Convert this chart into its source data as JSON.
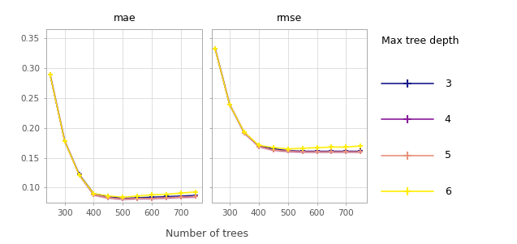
{
  "x_values": [
    250,
    300,
    350,
    400,
    450,
    500,
    550,
    600,
    650,
    700,
    750
  ],
  "mae": {
    "3": [
      0.289,
      0.178,
      0.122,
      0.09,
      0.085,
      0.082,
      0.083,
      0.084,
      0.085,
      0.086,
      0.087
    ],
    "4": [
      0.289,
      0.178,
      0.121,
      0.088,
      0.083,
      0.081,
      0.082,
      0.082,
      0.083,
      0.084,
      0.085
    ],
    "5": [
      0.289,
      0.178,
      0.121,
      0.088,
      0.083,
      0.081,
      0.082,
      0.082,
      0.083,
      0.084,
      0.085
    ],
    "6": [
      0.289,
      0.178,
      0.121,
      0.09,
      0.086,
      0.084,
      0.086,
      0.088,
      0.089,
      0.091,
      0.093
    ]
  },
  "mae_err": {
    "3": [
      0.001,
      0.001,
      0.001,
      0.001,
      0.001,
      0.001,
      0.001,
      0.001,
      0.001,
      0.001,
      0.001
    ],
    "4": [
      0.001,
      0.001,
      0.001,
      0.001,
      0.001,
      0.001,
      0.001,
      0.001,
      0.001,
      0.001,
      0.001
    ],
    "5": [
      0.001,
      0.001,
      0.001,
      0.001,
      0.001,
      0.001,
      0.001,
      0.001,
      0.001,
      0.001,
      0.001
    ],
    "6": [
      0.001,
      0.001,
      0.001,
      0.001,
      0.001,
      0.001,
      0.001,
      0.001,
      0.001,
      0.001,
      0.001
    ]
  },
  "rmse": {
    "3": [
      0.333,
      0.239,
      0.192,
      0.17,
      0.165,
      0.162,
      0.161,
      0.161,
      0.161,
      0.161,
      0.161
    ],
    "4": [
      0.333,
      0.239,
      0.192,
      0.169,
      0.163,
      0.161,
      0.16,
      0.16,
      0.16,
      0.16,
      0.16
    ],
    "5": [
      0.333,
      0.239,
      0.192,
      0.169,
      0.163,
      0.161,
      0.16,
      0.16,
      0.16,
      0.16,
      0.16
    ],
    "6": [
      0.333,
      0.239,
      0.193,
      0.171,
      0.167,
      0.165,
      0.166,
      0.167,
      0.168,
      0.168,
      0.17
    ]
  },
  "rmse_err": {
    "3": [
      0.001,
      0.001,
      0.001,
      0.001,
      0.001,
      0.001,
      0.001,
      0.001,
      0.001,
      0.001,
      0.001
    ],
    "4": [
      0.001,
      0.001,
      0.001,
      0.001,
      0.001,
      0.001,
      0.001,
      0.001,
      0.001,
      0.001,
      0.001
    ],
    "5": [
      0.001,
      0.001,
      0.001,
      0.001,
      0.001,
      0.001,
      0.001,
      0.001,
      0.001,
      0.001,
      0.001
    ],
    "6": [
      0.001,
      0.001,
      0.001,
      0.001,
      0.001,
      0.001,
      0.001,
      0.001,
      0.001,
      0.001,
      0.001
    ]
  },
  "colors": {
    "3": "#1a1a8c",
    "4": "#8b1a9c",
    "5": "#e8927c",
    "6": "#ffee00"
  },
  "ylim": [
    0.075,
    0.365
  ],
  "yticks": [
    0.1,
    0.15,
    0.2,
    0.25,
    0.3,
    0.35
  ],
  "xticks": [
    300,
    400,
    500,
    600,
    700
  ],
  "xlim": [
    238,
    772
  ],
  "xlabel": "Number of trees",
  "legend_title": "Max tree depth",
  "panel_bg": "#b5b5b5",
  "plot_bg": "#ffffff",
  "grid_color": "#d9d9d9",
  "title_fontsize": 9,
  "tick_fontsize": 7.5,
  "label_fontsize": 9,
  "legend_fontsize": 9
}
